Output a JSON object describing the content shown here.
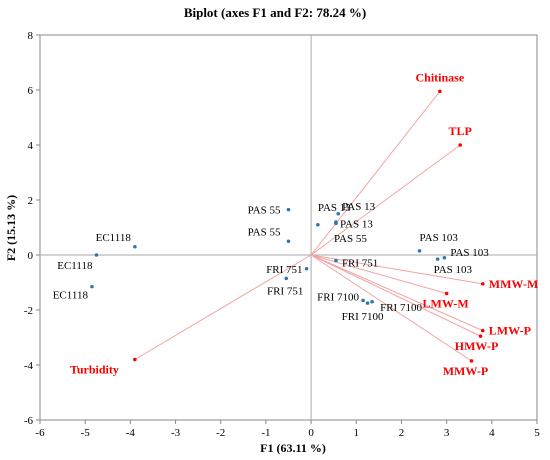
{
  "chart_data": {
    "type": "scatter",
    "title": "Biplot (axes F1 and F2: 78.24 %)",
    "xlabel": "F1 (63.11 %)",
    "ylabel": "F2 (15.13 %)",
    "xlim": [
      -6,
      5
    ],
    "ylim": [
      -6,
      8
    ],
    "x_ticks": [
      -6,
      -5,
      -4,
      -3,
      -2,
      -1,
      0,
      1,
      2,
      3,
      4,
      5
    ],
    "y_ticks": [
      -6,
      -4,
      -2,
      0,
      2,
      4,
      6,
      8
    ],
    "grid": false,
    "observation_color": "#2e75b6",
    "variable_color": "#ff0000",
    "vector_color": "#f4a3a3",
    "observations": [
      {
        "label": "EC1118",
        "x": -3.9,
        "y": 0.3
      },
      {
        "label": "EC1118",
        "x": -4.75,
        "y": 0.0
      },
      {
        "label": "EC1118",
        "x": -4.85,
        "y": -1.15
      },
      {
        "label": "PAS 55",
        "x": -0.5,
        "y": 1.65
      },
      {
        "label": "PAS 55",
        "x": -0.5,
        "y": 0.5
      },
      {
        "label": "PAS 13",
        "x": 0.15,
        "y": 1.1
      },
      {
        "label": "PAS 13",
        "x": 0.6,
        "y": 1.5
      },
      {
        "label": "PAS 13",
        "x": 0.55,
        "y": 1.15
      },
      {
        "label": "PAS 55",
        "x": 0.55,
        "y": 1.2
      },
      {
        "label": "PAS 103",
        "x": 2.4,
        "y": 0.15
      },
      {
        "label": "PAS 103",
        "x": 2.95,
        "y": -0.1
      },
      {
        "label": "PAS 103",
        "x": 2.8,
        "y": -0.15
      },
      {
        "label": "FRI 751",
        "x": -0.1,
        "y": -0.5
      },
      {
        "label": "FRI 751",
        "x": -0.55,
        "y": -0.85
      },
      {
        "label": "FRI 751",
        "x": 0.55,
        "y": -0.2
      },
      {
        "label": "FRI 7100",
        "x": 1.15,
        "y": -1.65
      },
      {
        "label": "FRI 7100",
        "x": 1.25,
        "y": -1.75
      },
      {
        "label": "FRI 7100",
        "x": 1.35,
        "y": -1.7
      }
    ],
    "variables": [
      {
        "label": "Chitinase",
        "x": 2.85,
        "y": 5.95
      },
      {
        "label": "TLP",
        "x": 3.3,
        "y": 4.0
      },
      {
        "label": "MMW-M",
        "x": 3.8,
        "y": -1.05
      },
      {
        "label": "LMW-M",
        "x": 3.0,
        "y": -1.4
      },
      {
        "label": "LMW-P",
        "x": 3.8,
        "y": -2.75
      },
      {
        "label": "HMW-P",
        "x": 3.75,
        "y": -2.95
      },
      {
        "label": "MMW-P",
        "x": 3.55,
        "y": -3.85
      },
      {
        "label": "Turbidity",
        "x": -3.9,
        "y": -3.8
      }
    ]
  }
}
